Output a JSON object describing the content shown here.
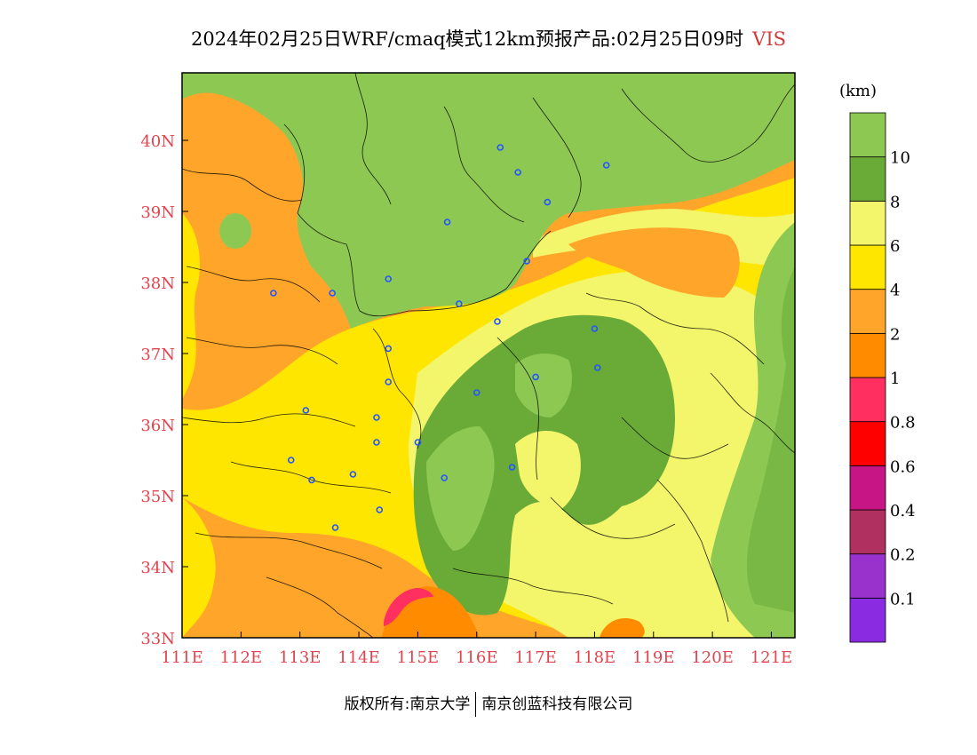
{
  "title": {
    "prefix": "2024年02月25日WRF/cmaq模式12km预报产品:02月25日09时",
    "variable": "VIS"
  },
  "legend": {
    "unit": "(km)",
    "bins": [
      {
        "color": "#8a2be2"
      },
      {
        "color": "#9932cc",
        "label": "0.1"
      },
      {
        "color": "#b03060",
        "label": "0.2"
      },
      {
        "color": "#c71585",
        "label": "0.4"
      },
      {
        "color": "#ff0000",
        "label": "0.6"
      },
      {
        "color": "#ff3060",
        "label": "0.8"
      },
      {
        "color": "#ff8c00",
        "label": "1"
      },
      {
        "color": "#ffa52a",
        "label": "2"
      },
      {
        "color": "#ffe600",
        "label": "4"
      },
      {
        "color": "#f3f56a",
        "label": "6"
      },
      {
        "color": "#6aab38",
        "label": "8"
      },
      {
        "color": "#8dc853",
        "label": "10"
      }
    ]
  },
  "axes": {
    "x_ticks": [
      "111E",
      "112E",
      "113E",
      "114E",
      "115E",
      "116E",
      "117E",
      "118E",
      "119E",
      "120E",
      "121E"
    ],
    "y_ticks": [
      "33N",
      "34N",
      "35N",
      "36N",
      "37N",
      "38N",
      "39N",
      "40N"
    ],
    "tick_color": "#e0454f"
  },
  "map_data": {
    "lon_range": [
      111,
      121.4
    ],
    "lat_range": [
      33,
      40.95
    ],
    "stations": [
      [
        116.4,
        39.9
      ],
      [
        116.7,
        39.55
      ],
      [
        117.2,
        39.13
      ],
      [
        118.2,
        39.65
      ],
      [
        115.5,
        38.85
      ],
      [
        114.5,
        38.05
      ],
      [
        116.85,
        38.3
      ],
      [
        115.7,
        37.7
      ],
      [
        116.35,
        37.45
      ],
      [
        112.55,
        37.85
      ],
      [
        113.55,
        37.85
      ],
      [
        114.5,
        37.07
      ],
      [
        114.5,
        36.6
      ],
      [
        116.0,
        36.45
      ],
      [
        117.0,
        36.67
      ],
      [
        118.0,
        37.35
      ],
      [
        118.05,
        36.8
      ],
      [
        113.1,
        36.2
      ],
      [
        114.3,
        36.1
      ],
      [
        115.0,
        35.75
      ],
      [
        114.3,
        35.75
      ],
      [
        112.85,
        35.5
      ],
      [
        113.2,
        35.22
      ],
      [
        113.9,
        35.3
      ],
      [
        115.45,
        35.25
      ],
      [
        116.6,
        35.4
      ],
      [
        114.35,
        34.8
      ],
      [
        113.6,
        34.55
      ]
    ]
  },
  "footer": {
    "left": "版权所有:南京大学",
    "right": "南京创蓝科技有限公司"
  }
}
